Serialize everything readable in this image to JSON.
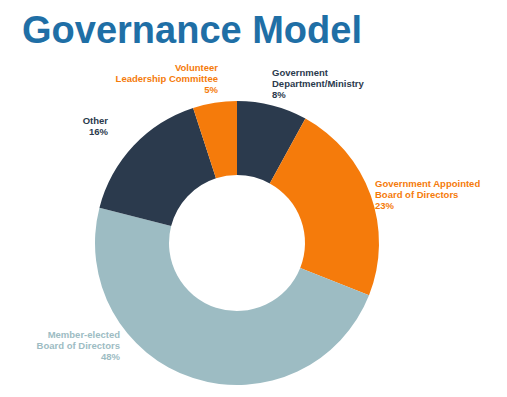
{
  "chart_data": {
    "type": "donut",
    "title": "Governance Model",
    "categories": [
      "Government Department/Ministry",
      "Government Appointed Board of Directors",
      "Member-elected Board of Directors",
      "Other",
      "Volunteer Leadership Committee"
    ],
    "values": [
      8,
      23,
      48,
      16,
      5
    ],
    "value_labels": [
      "8%",
      "23%",
      "48%",
      "16%",
      "5%"
    ],
    "colors": [
      "#2b3a4d",
      "#f57b0b",
      "#9dbcc3",
      "#2b3a4d",
      "#f57b0b"
    ],
    "data_labels": true
  }
}
